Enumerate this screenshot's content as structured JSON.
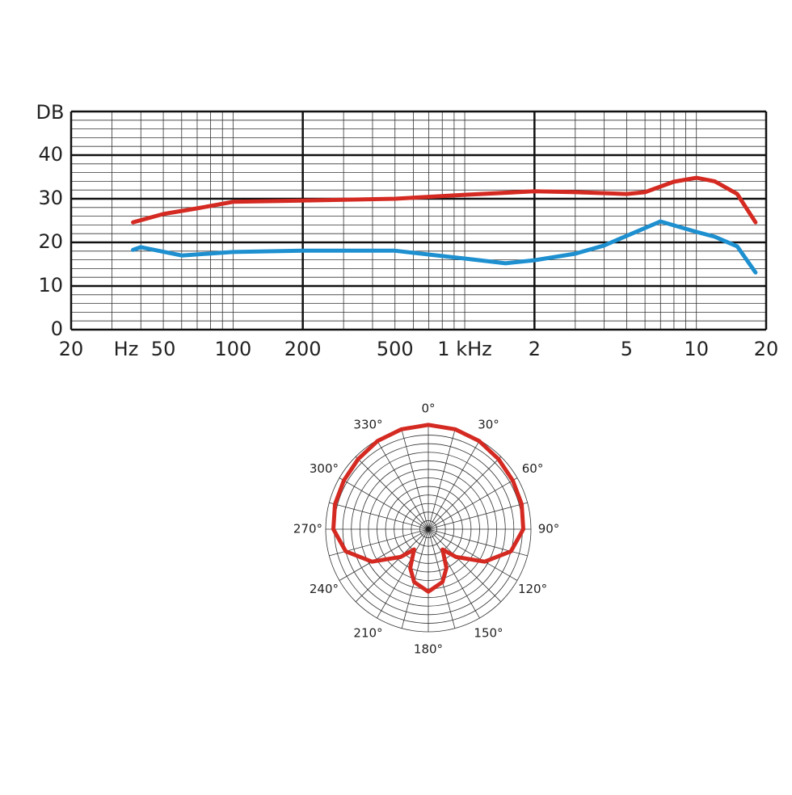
{
  "chart_data": [
    {
      "type": "line",
      "ylabel": "DB",
      "xlabel": "Hz",
      "xscale": "log",
      "xlim": [
        20,
        20000
      ],
      "ylim": [
        0,
        50
      ],
      "xticks": [
        20,
        50,
        100,
        200,
        500,
        {
          "value": 1000,
          "label": "1 kHz"
        },
        {
          "value": 2000,
          "label": "2"
        },
        {
          "value": 5000,
          "label": "5"
        },
        {
          "value": 10000,
          "label": "10"
        },
        {
          "value": 20000,
          "label": "20"
        }
      ],
      "yticks": [
        0,
        10,
        20,
        30,
        40
      ],
      "xgrid_major": [
        20,
        200,
        2000,
        20000
      ],
      "xgrid_minor": [
        30,
        40,
        50,
        60,
        70,
        80,
        90,
        100,
        300,
        400,
        500,
        600,
        700,
        800,
        900,
        1000,
        3000,
        4000,
        5000,
        6000,
        7000,
        8000,
        9000,
        10000
      ],
      "ygrid_major": [
        0,
        10,
        20,
        30,
        40,
        50
      ],
      "ygrid_minor": [
        2,
        4,
        6,
        8,
        12,
        14,
        16,
        18,
        22,
        24,
        26,
        28,
        32,
        34,
        36,
        38,
        42,
        44,
        46,
        48
      ],
      "series": [
        {
          "color": "#d42a22",
          "x": [
            37,
            50,
            70,
            100,
            200,
            500,
            1000,
            2000,
            3000,
            5000,
            6000,
            8000,
            10000,
            12000,
            15000,
            18000
          ],
          "values": [
            24.6,
            26.5,
            27.8,
            29.3,
            29.6,
            30,
            30.9,
            31.7,
            31.5,
            31.1,
            31.5,
            33.9,
            34.8,
            34,
            31.1,
            24.6
          ]
        },
        {
          "color": "#1e90d0",
          "x": [
            37,
            40,
            60,
            100,
            200,
            500,
            1000,
            1500,
            2000,
            3000,
            4000,
            5000,
            7000,
            10000,
            12000,
            15000,
            18000
          ],
          "values": [
            18.3,
            18.9,
            17,
            17.8,
            18.1,
            18.1,
            16.3,
            15.2,
            15.9,
            17.4,
            19.3,
            21.5,
            24.8,
            22.4,
            21.3,
            19.1,
            13.1
          ]
        }
      ]
    },
    {
      "type": "polar",
      "rlim": [
        0,
        12
      ],
      "rticks": [
        1,
        2,
        3,
        4,
        5,
        6,
        7,
        8,
        9,
        10,
        11,
        12
      ],
      "spokes": [
        0,
        15,
        30,
        45,
        60,
        75,
        90,
        105,
        120,
        135,
        150,
        165,
        180,
        195,
        210,
        225,
        240,
        255,
        270,
        285,
        300,
        315,
        330,
        345
      ],
      "angle_ticks": [
        {
          "value": 0,
          "label": "0°"
        },
        {
          "value": 30,
          "label": "30°"
        },
        {
          "value": 60,
          "label": "60°"
        },
        {
          "value": 90,
          "label": "90°"
        },
        {
          "value": 120,
          "label": "120°"
        },
        {
          "value": 150,
          "label": "150°"
        },
        {
          "value": 180,
          "label": "180°"
        },
        {
          "value": 210,
          "label": "210°"
        },
        {
          "value": 240,
          "label": "240°"
        },
        {
          "value": 270,
          "label": "270°"
        },
        {
          "value": 300,
          "label": "300°"
        },
        {
          "value": 330,
          "label": "330°"
        }
      ],
      "series": [
        {
          "color": "#d42a22",
          "angles": [
            0,
            15,
            30,
            45,
            60,
            75,
            90,
            105,
            120,
            135,
            145,
            155,
            165,
            180,
            195,
            205,
            215,
            225,
            240,
            255,
            270,
            285,
            300,
            315,
            330,
            345
          ],
          "values": [
            12.2,
            12.1,
            11.9,
            11.6,
            11.4,
            11.3,
            11.1,
            10.0,
            7.6,
            4.6,
            2.9,
            5.0,
            6.4,
            7.3,
            6.4,
            5.0,
            2.9,
            4.6,
            7.6,
            10.0,
            11.1,
            11.3,
            11.4,
            11.6,
            11.9,
            12.1
          ]
        }
      ]
    }
  ]
}
